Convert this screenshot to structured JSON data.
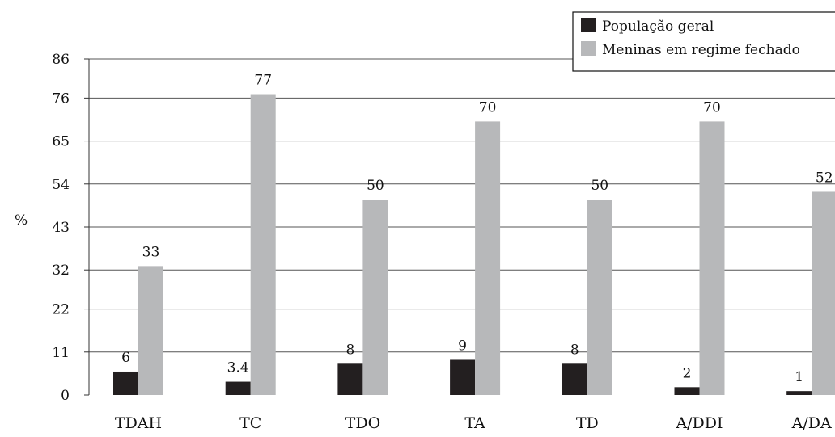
{
  "chart_data": {
    "type": "bar",
    "ylabel": "%",
    "xlabel": "",
    "title": "",
    "ylim": [
      0,
      86
    ],
    "yticks": [
      "86",
      "76",
      "65",
      "54",
      "43",
      "32",
      "22",
      "11",
      "0"
    ],
    "ytick_values": [
      86,
      76,
      65,
      54,
      43,
      32,
      22,
      11,
      0
    ],
    "categories": [
      "TDAH",
      "TC",
      "TDO",
      "TA",
      "TD",
      "A/DDI",
      "A/DA"
    ],
    "series": [
      {
        "name": "População geral",
        "values": [
          6,
          3.4,
          8,
          9,
          8,
          2,
          1
        ],
        "labels": [
          "6",
          "3.4",
          "8",
          "9",
          "8",
          "2",
          "1"
        ],
        "color": "#231f20"
      },
      {
        "name": "Meninas em regime fechado",
        "values": [
          33,
          77,
          50,
          70,
          50,
          70,
          52
        ],
        "labels": [
          "33",
          "77",
          "50",
          "70",
          "50",
          "70",
          "52"
        ],
        "color": "#b7b8ba"
      }
    ],
    "grid": true,
    "legend_position": "top-right"
  }
}
